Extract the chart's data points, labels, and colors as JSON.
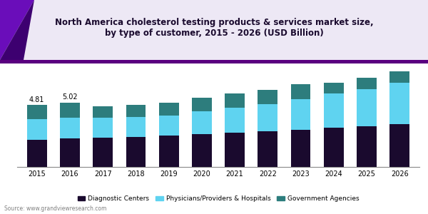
{
  "title": "North America cholesterol testing products & services market size,\nby type of customer, 2015 - 2026 (USD Billion)",
  "years": [
    2015,
    2016,
    2017,
    2018,
    2019,
    2020,
    2021,
    2022,
    2023,
    2024,
    2025,
    2026
  ],
  "diagnostic_centers": [
    2.1,
    2.2,
    2.28,
    2.35,
    2.45,
    2.55,
    2.65,
    2.78,
    2.9,
    3.05,
    3.18,
    3.35
  ],
  "physicians_hospitals": [
    1.6,
    1.65,
    1.55,
    1.55,
    1.55,
    1.8,
    1.95,
    2.1,
    2.4,
    2.65,
    2.9,
    3.2
  ],
  "government_agencies": [
    1.11,
    1.17,
    0.9,
    0.95,
    1.0,
    1.05,
    1.1,
    1.12,
    1.15,
    0.85,
    0.85,
    0.9
  ],
  "annotation_2015": "4.81",
  "annotation_2016": "5.02",
  "color_diagnostic": "#1a0a2e",
  "color_physicians": "#5fd3f0",
  "color_government": "#2d7d7d",
  "bar_width": 0.6,
  "ylim": [
    0,
    8
  ],
  "source": "Source: www.grandviewresearch.com",
  "title_color": "#1a0a2e",
  "header_bg": "#ede8f5",
  "header_line_color": "#5a0080",
  "tri_color1": "#6a0dba",
  "tri_color2": "#3d0070"
}
